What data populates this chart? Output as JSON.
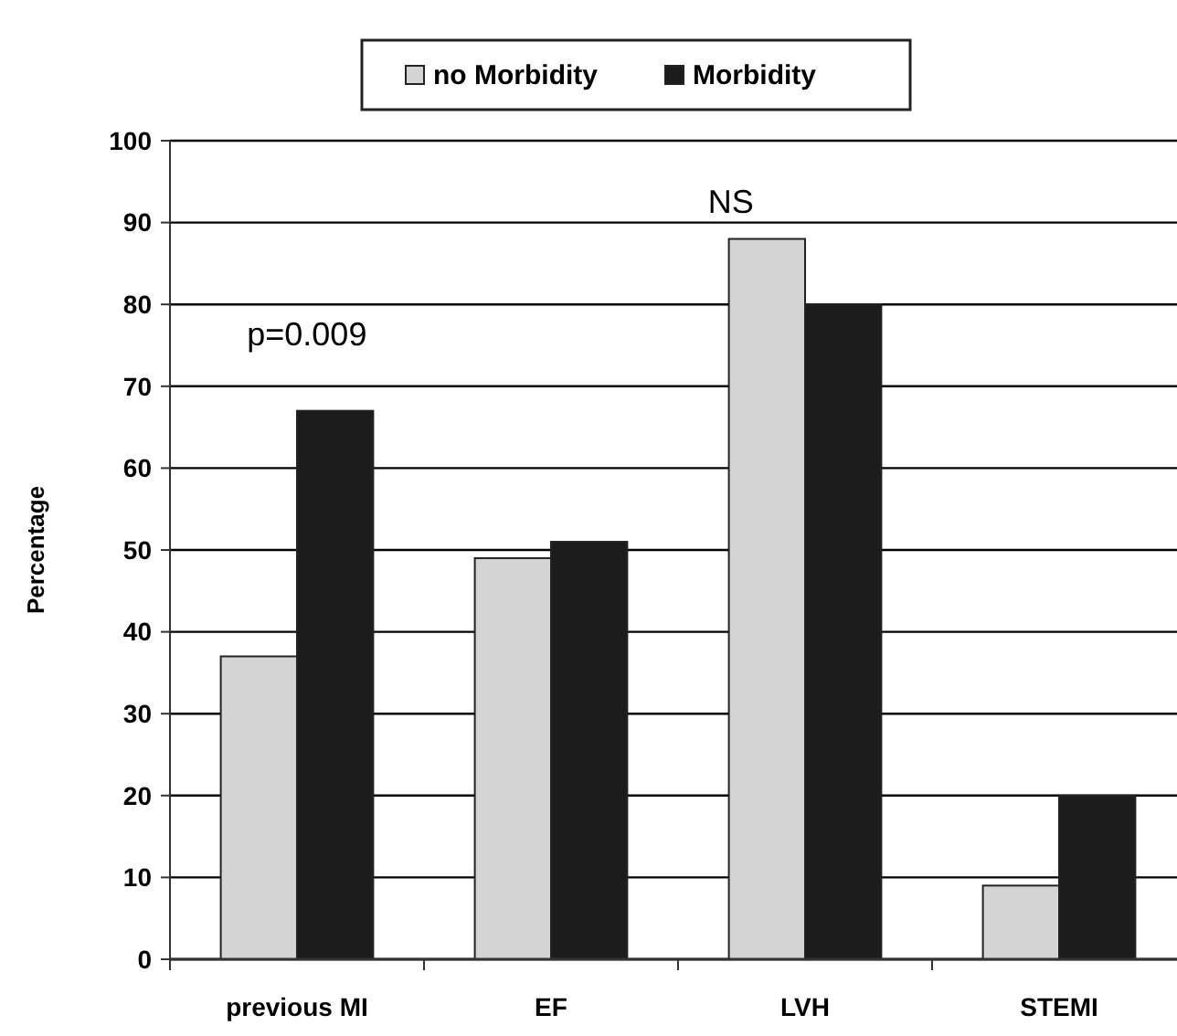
{
  "chart_data": {
    "type": "bar",
    "ylabel": "Percentage",
    "categories": [
      "previous MI",
      "EF",
      "LVH",
      "STEMI"
    ],
    "series": [
      {
        "name": "no Morbidity",
        "color": "#d4d4d4",
        "values": [
          37,
          49,
          88,
          9
        ]
      },
      {
        "name": "Morbidity",
        "color": "#1c1c1c",
        "values": [
          67,
          51,
          80,
          20
        ]
      }
    ],
    "ylim": [
      0,
      100
    ],
    "yticks": [
      0,
      10,
      20,
      30,
      40,
      50,
      60,
      70,
      80,
      90,
      100
    ],
    "grid": "y",
    "legend": "top",
    "annotations": [
      "p=0.009",
      "NS"
    ]
  }
}
